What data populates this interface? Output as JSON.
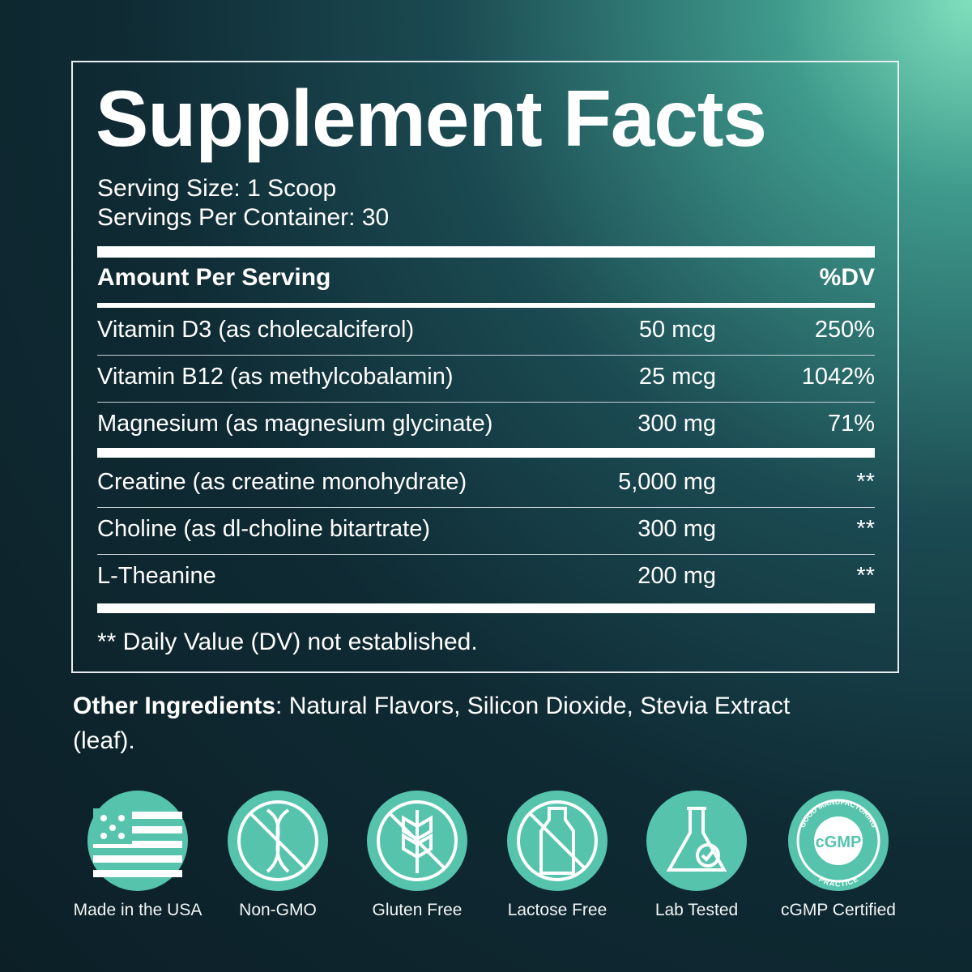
{
  "header": {
    "title": "Supplement Facts",
    "serving_size": "Serving Size: 1 Scoop",
    "servings_per_container": "Servings Per Container: 30"
  },
  "table": {
    "columns": [
      "Amount Per Serving",
      "%DV"
    ],
    "groups": [
      [
        [
          "Vitamin D3 (as cholecalciferol)",
          "50 mcg",
          "250%"
        ],
        [
          "Vitamin B12 (as methylcobalamin)",
          "25 mcg",
          "1042%"
        ],
        [
          "Magnesium (as magnesium glycinate)",
          "300 mg",
          "71%"
        ]
      ],
      [
        [
          "Creatine (as creatine monohydrate)",
          "5,000 mg",
          "**"
        ],
        [
          "Choline (as dl-choline bitartrate)",
          "300 mg",
          "**"
        ],
        [
          "L-Theanine",
          "200 mg",
          "**"
        ]
      ]
    ]
  },
  "footnote": "** Daily Value (DV) not established.",
  "other_ingredients": {
    "label": "Other Ingredients",
    "text": ": Natural Flavors, Silicon Dioxide, Stevia Extract (leaf)."
  },
  "badges": [
    "Made in the USA",
    "Non-GMO",
    "Gluten Free",
    "Lactose Free",
    "Lab Tested",
    "cGMP Certified"
  ],
  "seal": {
    "center": "cGMP",
    "ring_top": "GOOD MANUFACTURING",
    "ring_bottom": "PRACTICE"
  }
}
